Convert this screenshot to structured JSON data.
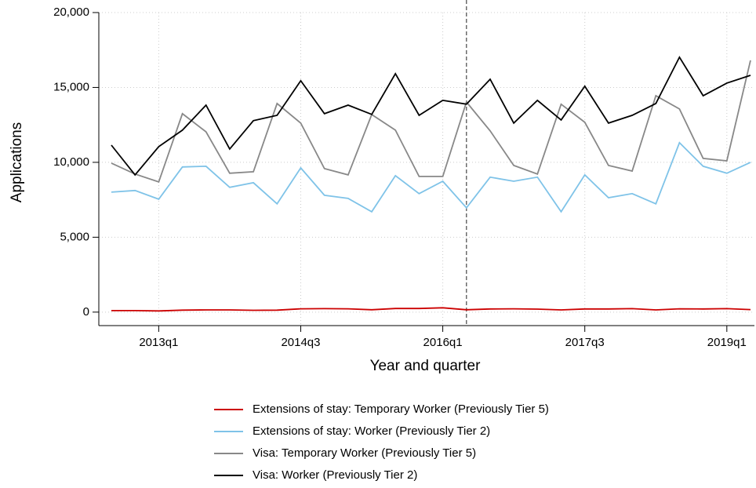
{
  "chart_data": {
    "type": "line",
    "y_label": "Applications",
    "x_label": "Year and quarter",
    "categories": [
      null,
      null,
      "2013q1",
      null,
      null,
      null,
      null,
      null,
      "2014q3",
      null,
      null,
      null,
      null,
      null,
      "2016q1",
      null,
      null,
      null,
      null,
      null,
      "2017q3",
      null,
      null,
      null,
      null,
      null,
      "2019q1",
      null
    ],
    "series": [
      {
        "name": "Extensions of stay: Temporary Worker (Previously Tier 5)",
        "color": "#cc0000",
        "values": [
          100,
          100,
          80,
          130,
          150,
          150,
          120,
          130,
          220,
          230,
          220,
          160,
          240,
          240,
          290,
          160,
          210,
          220,
          200,
          150,
          210,
          210,
          230,
          150,
          220,
          210,
          230,
          170
        ]
      },
      {
        "name": "Extensions of stay: Worker (Previously Tier 2)",
        "color": "#7fc3e8",
        "values": [
          8010,
          8120,
          7540,
          9690,
          9740,
          8330,
          8640,
          7230,
          9630,
          7800,
          7590,
          6700,
          9110,
          7910,
          8740,
          6960,
          9010,
          8740,
          9010,
          6700,
          9160,
          7640,
          7910,
          7230,
          11310,
          9740,
          9270,
          10000
        ]
      },
      {
        "name": "Visa: Temporary Worker (Previously Tier 5)",
        "color": "#888888",
        "values": [
          9950,
          9220,
          8690,
          13250,
          12040,
          9270,
          9370,
          13930,
          12620,
          9580,
          9160,
          13190,
          12150,
          9060,
          9060,
          14030,
          12100,
          9790,
          9220,
          13880,
          12670,
          9790,
          9420,
          14450,
          13560,
          10260,
          10100,
          16810
        ]
      },
      {
        "name": "Visa: Worker (Previously Tier 2)",
        "color": "#000000",
        "values": [
          11150,
          9160,
          11050,
          12150,
          13820,
          10890,
          12780,
          13140,
          15450,
          13250,
          13820,
          13200,
          15920,
          13140,
          14140,
          13880,
          15550,
          12620,
          14140,
          12830,
          15080,
          12620,
          13140,
          13930,
          17020,
          14450,
          15290,
          15810
        ]
      }
    ],
    "ylim": [
      -900,
      20000
    ],
    "yticks": [
      {
        "value": 0,
        "label": "0"
      },
      {
        "value": 5000,
        "label": "5,000"
      },
      {
        "value": 10000,
        "label": "10,000"
      },
      {
        "value": 15000,
        "label": "15,000"
      },
      {
        "value": 20000,
        "label": "20,000"
      }
    ],
    "grid": true,
    "reference_line": {
      "x_index": 15,
      "style": "dashed"
    },
    "legend": "bottom"
  }
}
